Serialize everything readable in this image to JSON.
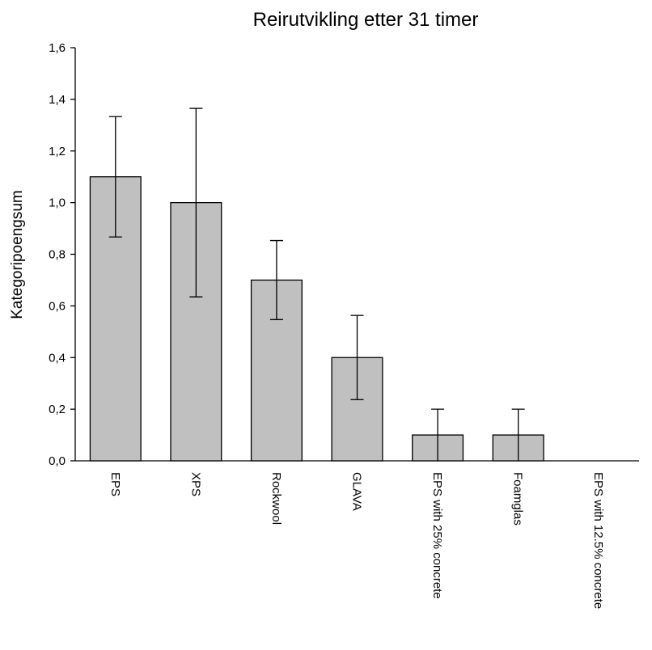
{
  "chart_data": {
    "type": "bar",
    "title": "Reirutvikling etter 31 timer",
    "xlabel": "",
    "ylabel": "Kategoripoengsum",
    "categories": [
      "EPS",
      "XPS",
      "Rockwool",
      "GLAVA",
      "EPS with 25% concrete",
      "Foamglas",
      "EPS with 12.5% concrete"
    ],
    "values": [
      1.1,
      1.0,
      0.7,
      0.4,
      0.1,
      0.1,
      0.0
    ],
    "error_bars": [
      0.233,
      0.365,
      0.153,
      0.163,
      0.1,
      0.1,
      0.0
    ],
    "ylim": [
      0,
      1.6
    ],
    "yticks": [
      0.0,
      0.2,
      0.4,
      0.6,
      0.8,
      1.0,
      1.2,
      1.4,
      1.6
    ],
    "ytick_labels": [
      "0,0",
      "0,2",
      "0,4",
      "0,6",
      "0,8",
      "1,0",
      "1,2",
      "1,4",
      "1,6"
    ],
    "grid": false,
    "bar_color": "#c0c0c0"
  }
}
